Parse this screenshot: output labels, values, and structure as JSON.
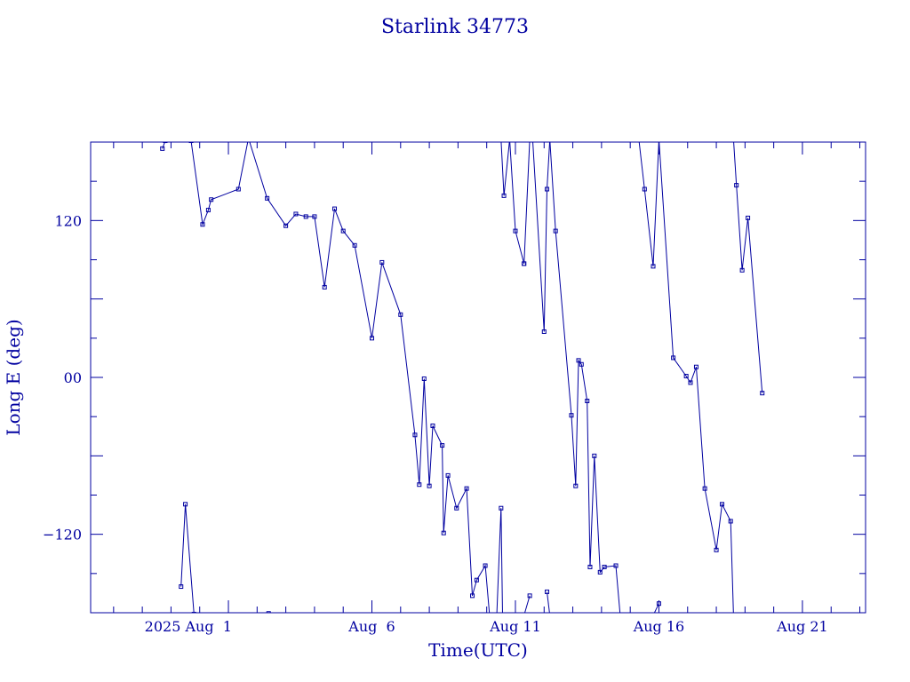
{
  "chart_data": {
    "type": "line",
    "title": "Starlink 34773",
    "xlabel": "Time(UTC)",
    "ylabel": "Long E (deg)",
    "ylim": [
      -180,
      180
    ],
    "x_axis": "days relative to 2025-08-01 00:00 UTC",
    "xlim": [
      -4.8,
      22.2
    ],
    "x_tick_labels": [
      {
        "x": -1.4,
        "label": "2025 Aug  1"
      },
      {
        "x": 5,
        "label": "Aug  6"
      },
      {
        "x": 10,
        "label": "Aug 11"
      },
      {
        "x": 15,
        "label": "Aug 16"
      },
      {
        "x": 20,
        "label": "Aug 21"
      }
    ],
    "y_tick_labels": [
      {
        "y": 120,
        "label": "120"
      },
      {
        "y": 0,
        "label": "00"
      },
      {
        "y": -120,
        "label": "−120"
      }
    ],
    "grid": false,
    "color": "#0000a0",
    "series": [
      {
        "segments": [
          [
            [
              -1.65,
              -160
            ],
            [
              -1.5,
              -97
            ],
            [
              -1.2,
              -181
            ]
          ],
          [
            [
              1.4,
              -180.5
            ]
          ],
          [
            [
              -2.3,
              175
            ],
            [
              -2.2,
              181
            ]
          ],
          [
            [
              -1.3,
              181
            ],
            [
              -0.9,
              117
            ],
            [
              -0.7,
              128
            ],
            [
              -0.6,
              136
            ],
            [
              0.35,
              144
            ],
            [
              0.7,
              183
            ]
          ],
          [
            [
              0.7,
              183
            ],
            [
              1.35,
              137
            ],
            [
              2.0,
              116
            ],
            [
              2.35,
              125
            ],
            [
              2.7,
              123
            ],
            [
              3.0,
              123
            ],
            [
              3.35,
              69
            ],
            [
              3.7,
              129
            ],
            [
              4.0,
              112
            ],
            [
              4.4,
              101
            ],
            [
              5.0,
              30
            ],
            [
              5.35,
              88
            ],
            [
              6.0,
              48
            ],
            [
              6.5,
              -44
            ],
            [
              6.65,
              -82
            ],
            [
              6.82,
              -1
            ],
            [
              7.0,
              -83
            ],
            [
              7.12,
              -37
            ],
            [
              7.45,
              -52
            ],
            [
              7.5,
              -119
            ],
            [
              7.65,
              -75
            ],
            [
              7.95,
              -100
            ],
            [
              8.3,
              -85
            ],
            [
              8.5,
              -167
            ],
            [
              8.65,
              -155
            ],
            [
              8.95,
              -144
            ],
            [
              9.1,
              -182
            ]
          ],
          [
            [
              9.35,
              -182
            ],
            [
              9.5,
              -100
            ],
            [
              9.55,
              -182
            ]
          ],
          [
            [
              9.5,
              182
            ],
            [
              9.6,
              139
            ],
            [
              9.8,
              182
            ]
          ],
          [
            [
              9.8,
              182
            ],
            [
              10.0,
              112
            ],
            [
              10.3,
              87
            ]
          ],
          [
            [
              10.3,
              87
            ],
            [
              10.5,
              182
            ]
          ],
          [
            [
              10.6,
              182
            ],
            [
              11.0,
              35
            ],
            [
              11.1,
              144
            ],
            [
              11.2,
              182
            ]
          ],
          [
            [
              11.2,
              182
            ],
            [
              11.4,
              112
            ],
            [
              11.95,
              -29
            ],
            [
              12.1,
              -83
            ],
            [
              12.2,
              13
            ],
            [
              12.3,
              10
            ],
            [
              12.5,
              -18
            ],
            [
              12.6,
              -145
            ],
            [
              12.75,
              -60
            ],
            [
              12.95,
              -149
            ],
            [
              13.1,
              -145
            ],
            [
              13.5,
              -144
            ],
            [
              13.65,
              -182
            ]
          ],
          [
            [
              10.3,
              -182
            ],
            [
              10.5,
              -167
            ]
          ],
          [
            [
              11.1,
              -164
            ],
            [
              11.2,
              -182
            ]
          ],
          [
            [
              14.3,
              182
            ],
            [
              14.5,
              144
            ],
            [
              14.8,
              85
            ],
            [
              15.0,
              182
            ]
          ],
          [
            [
              14.8,
              -182
            ],
            [
              15.0,
              -173
            ]
          ],
          [
            [
              15.0,
              182
            ],
            [
              15.5,
              15
            ],
            [
              15.95,
              1
            ],
            [
              16.1,
              -4
            ],
            [
              16.3,
              8
            ],
            [
              16.6,
              -85
            ],
            [
              17.0,
              -132
            ],
            [
              17.2,
              -97
            ],
            [
              17.5,
              -110
            ],
            [
              17.6,
              -182
            ]
          ],
          [
            [
              17.6,
              182
            ],
            [
              17.7,
              147
            ],
            [
              17.9,
              82
            ],
            [
              18.1,
              122
            ],
            [
              18.6,
              -12
            ]
          ]
        ]
      }
    ]
  }
}
